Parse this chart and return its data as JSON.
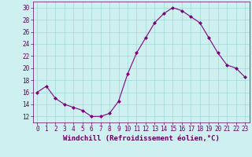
{
  "x": [
    0,
    1,
    2,
    3,
    4,
    5,
    6,
    7,
    8,
    9,
    10,
    11,
    12,
    13,
    14,
    15,
    16,
    17,
    18,
    19,
    20,
    21,
    22,
    23
  ],
  "y": [
    16,
    17,
    15,
    14,
    13.5,
    13,
    12,
    12,
    12.5,
    14.5,
    19,
    22.5,
    25,
    27.5,
    29,
    30,
    29.5,
    28.5,
    27.5,
    25,
    22.5,
    20.5,
    20,
    18.5
  ],
  "line_color": "#800080",
  "marker": "D",
  "marker_size": 2,
  "bg_color": "#cff0f0",
  "grid_color": "#a0d8d8",
  "xlabel": "Windchill (Refroidissement éolien,°C)",
  "ylim": [
    11,
    31
  ],
  "xlim": [
    -0.5,
    23.5
  ],
  "yticks": [
    12,
    14,
    16,
    18,
    20,
    22,
    24,
    26,
    28,
    30
  ],
  "xticks": [
    0,
    1,
    2,
    3,
    4,
    5,
    6,
    7,
    8,
    9,
    10,
    11,
    12,
    13,
    14,
    15,
    16,
    17,
    18,
    19,
    20,
    21,
    22,
    23
  ],
  "tick_label_size": 5.5,
  "xlabel_size": 6.5
}
